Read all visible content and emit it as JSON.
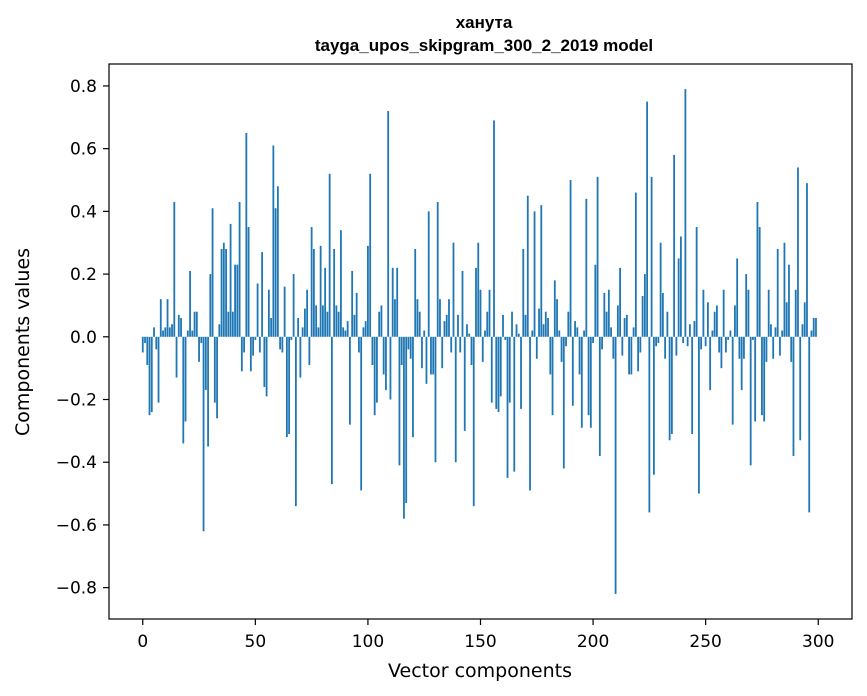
{
  "chart_data": {
    "type": "bar",
    "title": "ханута",
    "subtitle": "tayga_upos_skipgram_300_2_2019 model",
    "xlabel": "Vector components",
    "ylabel": "Components values",
    "xlim": [
      -15,
      315
    ],
    "ylim": [
      -0.9,
      0.87
    ],
    "xticks": [
      0,
      50,
      100,
      150,
      200,
      250,
      300
    ],
    "xtick_labels": [
      "0",
      "50",
      "100",
      "150",
      "200",
      "250",
      "300"
    ],
    "yticks": [
      0.8,
      0.6,
      0.4,
      0.2,
      0.0,
      -0.2,
      -0.4,
      -0.6,
      -0.8
    ],
    "ytick_labels": [
      "0.8",
      "0.6",
      "0.4",
      "0.2",
      "0.0",
      "−0.2",
      "−0.4",
      "−0.6",
      "−0.8"
    ],
    "bar_color": "#1f77b4",
    "grid": false,
    "values": [
      -0.05,
      -0.02,
      -0.09,
      -0.25,
      -0.24,
      0.03,
      -0.04,
      -0.21,
      0.12,
      0.02,
      0.03,
      0.12,
      0.03,
      0.04,
      0.43,
      -0.13,
      0.07,
      0.06,
      -0.34,
      -0.27,
      0.02,
      0.21,
      0.02,
      0.08,
      0.08,
      -0.08,
      -0.02,
      -0.62,
      -0.17,
      -0.35,
      0.2,
      0.41,
      -0.21,
      -0.26,
      0.04,
      0.28,
      0.3,
      0.28,
      0.08,
      0.36,
      0.08,
      0.23,
      0.23,
      0.43,
      -0.11,
      -0.05,
      0.65,
      0.35,
      -0.11,
      -0.06,
      -0.01,
      0.17,
      -0.05,
      0.27,
      -0.16,
      -0.19,
      0.15,
      0.06,
      0.61,
      0.41,
      0.48,
      -0.04,
      -0.05,
      0.16,
      -0.32,
      -0.31,
      -0.01,
      0.2,
      -0.54,
      0.06,
      -0.13,
      0.03,
      0.09,
      0.15,
      -0.09,
      0.35,
      0.28,
      0.1,
      0.03,
      0.29,
      0.1,
      0.22,
      0.08,
      0.52,
      -0.47,
      0.28,
      0.1,
      0.08,
      0.34,
      0.03,
      0.02,
      0.05,
      -0.28,
      0.21,
      0.07,
      0.14,
      -0.05,
      -0.49,
      0.03,
      0.05,
      0.29,
      0.52,
      -0.09,
      -0.25,
      -0.21,
      0.08,
      0.1,
      -0.12,
      -0.17,
      0.72,
      -0.2,
      0.22,
      0.12,
      0.22,
      -0.41,
      -0.09,
      -0.58,
      -0.53,
      -0.04,
      -0.07,
      -0.32,
      0.28,
      0.12,
      0.08,
      -0.1,
      0.02,
      -0.15,
      0.4,
      -0.12,
      -0.12,
      -0.4,
      0.43,
      0.12,
      -0.1,
      0.05,
      0.07,
      0.12,
      -0.05,
      0.3,
      -0.4,
      0.07,
      -0.05,
      0.21,
      -0.3,
      0.04,
      0.01,
      -0.09,
      -0.54,
      0.22,
      0.3,
      0.15,
      -0.08,
      0.02,
      0.08,
      0.15,
      -0.21,
      0.69,
      -0.23,
      -0.24,
      -0.19,
      0.07,
      -0.01,
      -0.45,
      -0.21,
      0.08,
      -0.43,
      0.04,
      0.01,
      -0.23,
      0.28,
      0.07,
      0.45,
      -0.49,
      0.02,
      0.4,
      -0.07,
      0.09,
      0.42,
      0.04,
      0.08,
      0.06,
      -0.12,
      -0.25,
      0.18,
      0.12,
      0.02,
      -0.08,
      -0.42,
      -0.03,
      0.08,
      0.5,
      -0.22,
      0.05,
      0.03,
      -0.12,
      -0.29,
      0.02,
      0.44,
      -0.25,
      -0.29,
      -0.02,
      0.23,
      0.51,
      -0.38,
      -0.04,
      0.14,
      0.08,
      0.15,
      0.03,
      -0.07,
      -0.82,
      0.1,
      0.22,
      -0.06,
      0.06,
      0.07,
      -0.12,
      -0.12,
      0.03,
      0.46,
      -0.11,
      -0.05,
      0.13,
      0.2,
      0.75,
      -0.56,
      0.51,
      -0.44,
      -0.03,
      -0.02,
      0.3,
      0.14,
      -0.07,
      0.08,
      -0.33,
      -0.31,
      0.58,
      -0.06,
      0.25,
      0.32,
      -0.02,
      0.79,
      -0.03,
      0.04,
      -0.31,
      0.05,
      0.35,
      -0.5,
      -0.04,
      0.15,
      -0.03,
      0.11,
      -0.17,
      0.02,
      0.08,
      0.1,
      -0.05,
      -0.1,
      0.15,
      -0.05,
      -0.01,
      0.02,
      -0.28,
      0.1,
      0.25,
      -0.07,
      -0.17,
      -0.07,
      0.2,
      0.15,
      -0.41,
      -0.01,
      -0.27,
      0.43,
      0.35,
      -0.25,
      -0.27,
      -0.08,
      0.15,
      0.04,
      -0.07,
      0.03,
      0.28,
      -0.06,
      0.02,
      0.3,
      0.11,
      0.23,
      -0.08,
      -0.38,
      0.15,
      0.54,
      -0.33,
      0.04,
      0.11,
      0.49,
      -0.56,
      0.02,
      0.06,
      0.06
    ]
  }
}
